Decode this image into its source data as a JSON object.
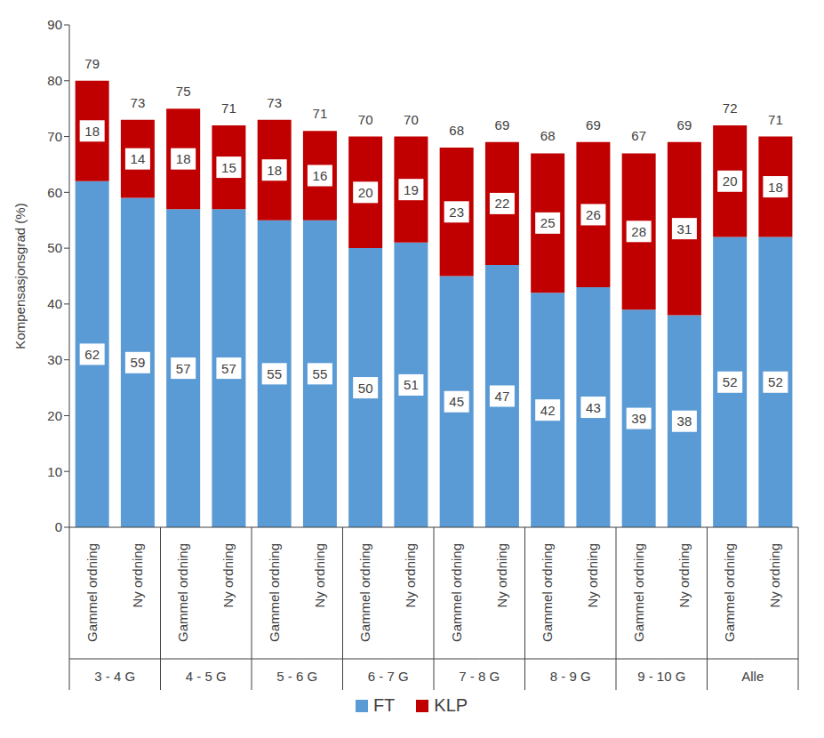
{
  "chart_data": {
    "type": "bar",
    "stacked": true,
    "data_labels": true,
    "categories": [
      "Gammel ordning",
      "Ny ordning",
      "Gammel ordning",
      "Ny ordning",
      "Gammel ordning",
      "Ny ordning",
      "Gammel ordning",
      "Ny ordning",
      "Gammel ordning",
      "Ny ordning",
      "Gammel ordning",
      "Ny ordning",
      "Gammel ordning",
      "Ny ordning",
      "Gammel ordning",
      "Ny ordning"
    ],
    "groups": [
      "3 - 4 G",
      "4 - 5 G",
      "5 - 6 G",
      "6 - 7 G",
      "7 - 8 G",
      "8 - 9 G",
      "9 - 10 G",
      "Alle"
    ],
    "series": [
      {
        "name": "FT",
        "color": "#5b9bd5",
        "values": [
          62,
          59,
          57,
          57,
          55,
          55,
          50,
          51,
          45,
          47,
          42,
          43,
          39,
          38,
          52,
          52
        ]
      },
      {
        "name": "KLP",
        "color": "#c00000",
        "values": [
          18,
          14,
          18,
          15,
          18,
          16,
          20,
          19,
          23,
          22,
          25,
          26,
          28,
          31,
          20,
          18
        ]
      }
    ],
    "totals": [
      79,
      73,
      75,
      71,
      73,
      71,
      70,
      70,
      68,
      69,
      68,
      69,
      67,
      69,
      72,
      71
    ],
    "y_label": "Kompensasjonsgrad (%)",
    "ylim": [
      0,
      90
    ],
    "yticks": [
      0,
      10,
      20,
      30,
      40,
      50,
      60,
      70,
      80,
      90
    ],
    "grid": false,
    "legend": "bottom"
  }
}
